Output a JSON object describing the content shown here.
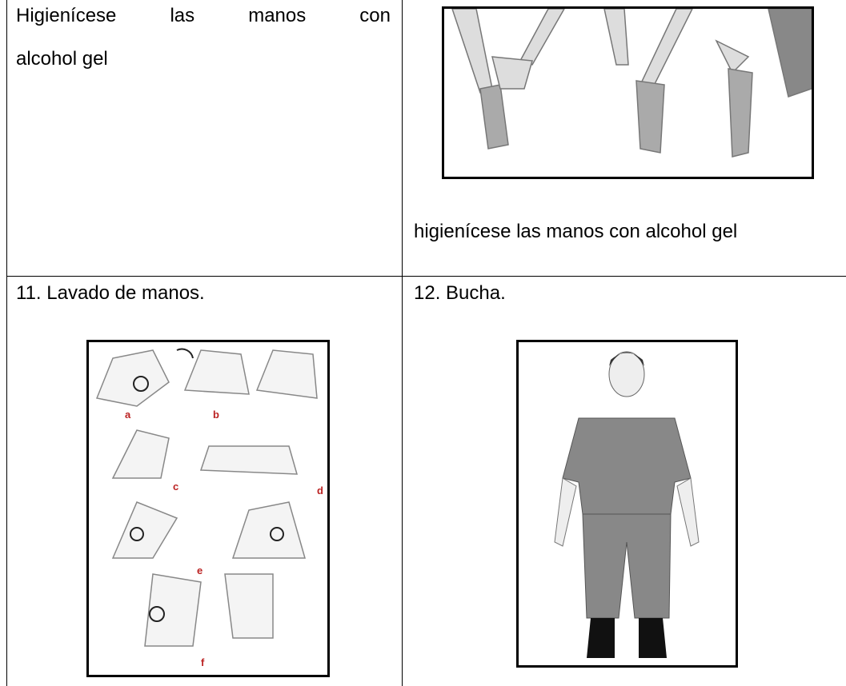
{
  "table": {
    "rows": [
      {
        "cells": [
          {
            "lines": [
              "Higienícese las manos con",
              "alcohol gel"
            ]
          },
          {
            "caption": "higienícese las manos con alcohol gel"
          }
        ]
      },
      {
        "cells": [
          {
            "text": "11. Lavado de manos.",
            "image_labels": [
              "a",
              "b",
              "c",
              "d",
              "e",
              "f"
            ]
          },
          {
            "text": "12. Bucha."
          }
        ]
      }
    ]
  }
}
